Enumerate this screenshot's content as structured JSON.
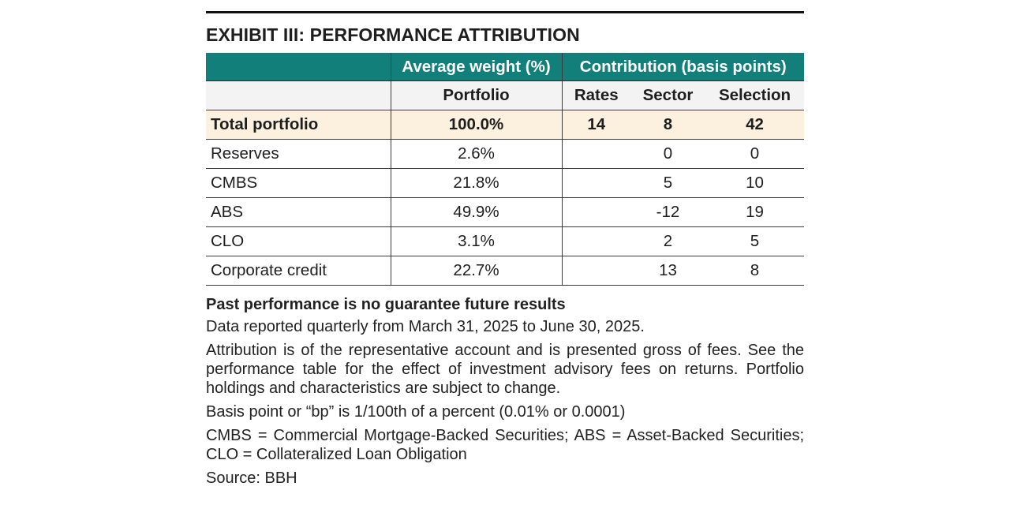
{
  "exhibit": {
    "title": "EXHIBIT III: PERFORMANCE ATTRIBUTION",
    "header": {
      "group_weight": "Average weight (%)",
      "group_contribution": "Contribution (basis points)",
      "sub_portfolio": "Portfolio",
      "sub_rates": "Rates",
      "sub_sector": "Sector",
      "sub_selection": "Selection"
    },
    "rows": [
      {
        "label": "Total portfolio",
        "weight": "100.0%",
        "rates": "14",
        "sector": "8",
        "selection": "42"
      },
      {
        "label": "Reserves",
        "weight": "2.6%",
        "rates": "",
        "sector": "0",
        "selection": "0"
      },
      {
        "label": "CMBS",
        "weight": "21.8%",
        "rates": "",
        "sector": "5",
        "selection": "10"
      },
      {
        "label": "ABS",
        "weight": "49.9%",
        "rates": "",
        "sector": "-12",
        "selection": "19"
      },
      {
        "label": "CLO",
        "weight": "3.1%",
        "rates": "",
        "sector": "2",
        "selection": "5"
      },
      {
        "label": "Corporate credit",
        "weight": "22.7%",
        "rates": "",
        "sector": "13",
        "selection": "8"
      }
    ],
    "notes": {
      "disclaimer": "Past performance is no guarantee future results",
      "data_period": "Data reported quarterly from March 31, 2025 to June 30, 2025.",
      "attribution": "Attribution is of the representative account and is presented gross of fees. See the performance table for the effect of investment advisory fees on returns. Portfolio holdings and characteristics are subject to change.",
      "basis_point": "Basis point or “bp” is 1/100th of a percent (0.01% or 0.0001)",
      "abbreviations": "CMBS = Commercial Mortgage-Backed Securities; ABS = Asset-Backed Securities; CLO = Collateralized Loan Obligation",
      "source": "Source: BBH"
    },
    "colors": {
      "header_teal": "#127f7a",
      "subheader_gray": "#f3f3f3",
      "total_row_cream": "#fcf1df"
    }
  }
}
